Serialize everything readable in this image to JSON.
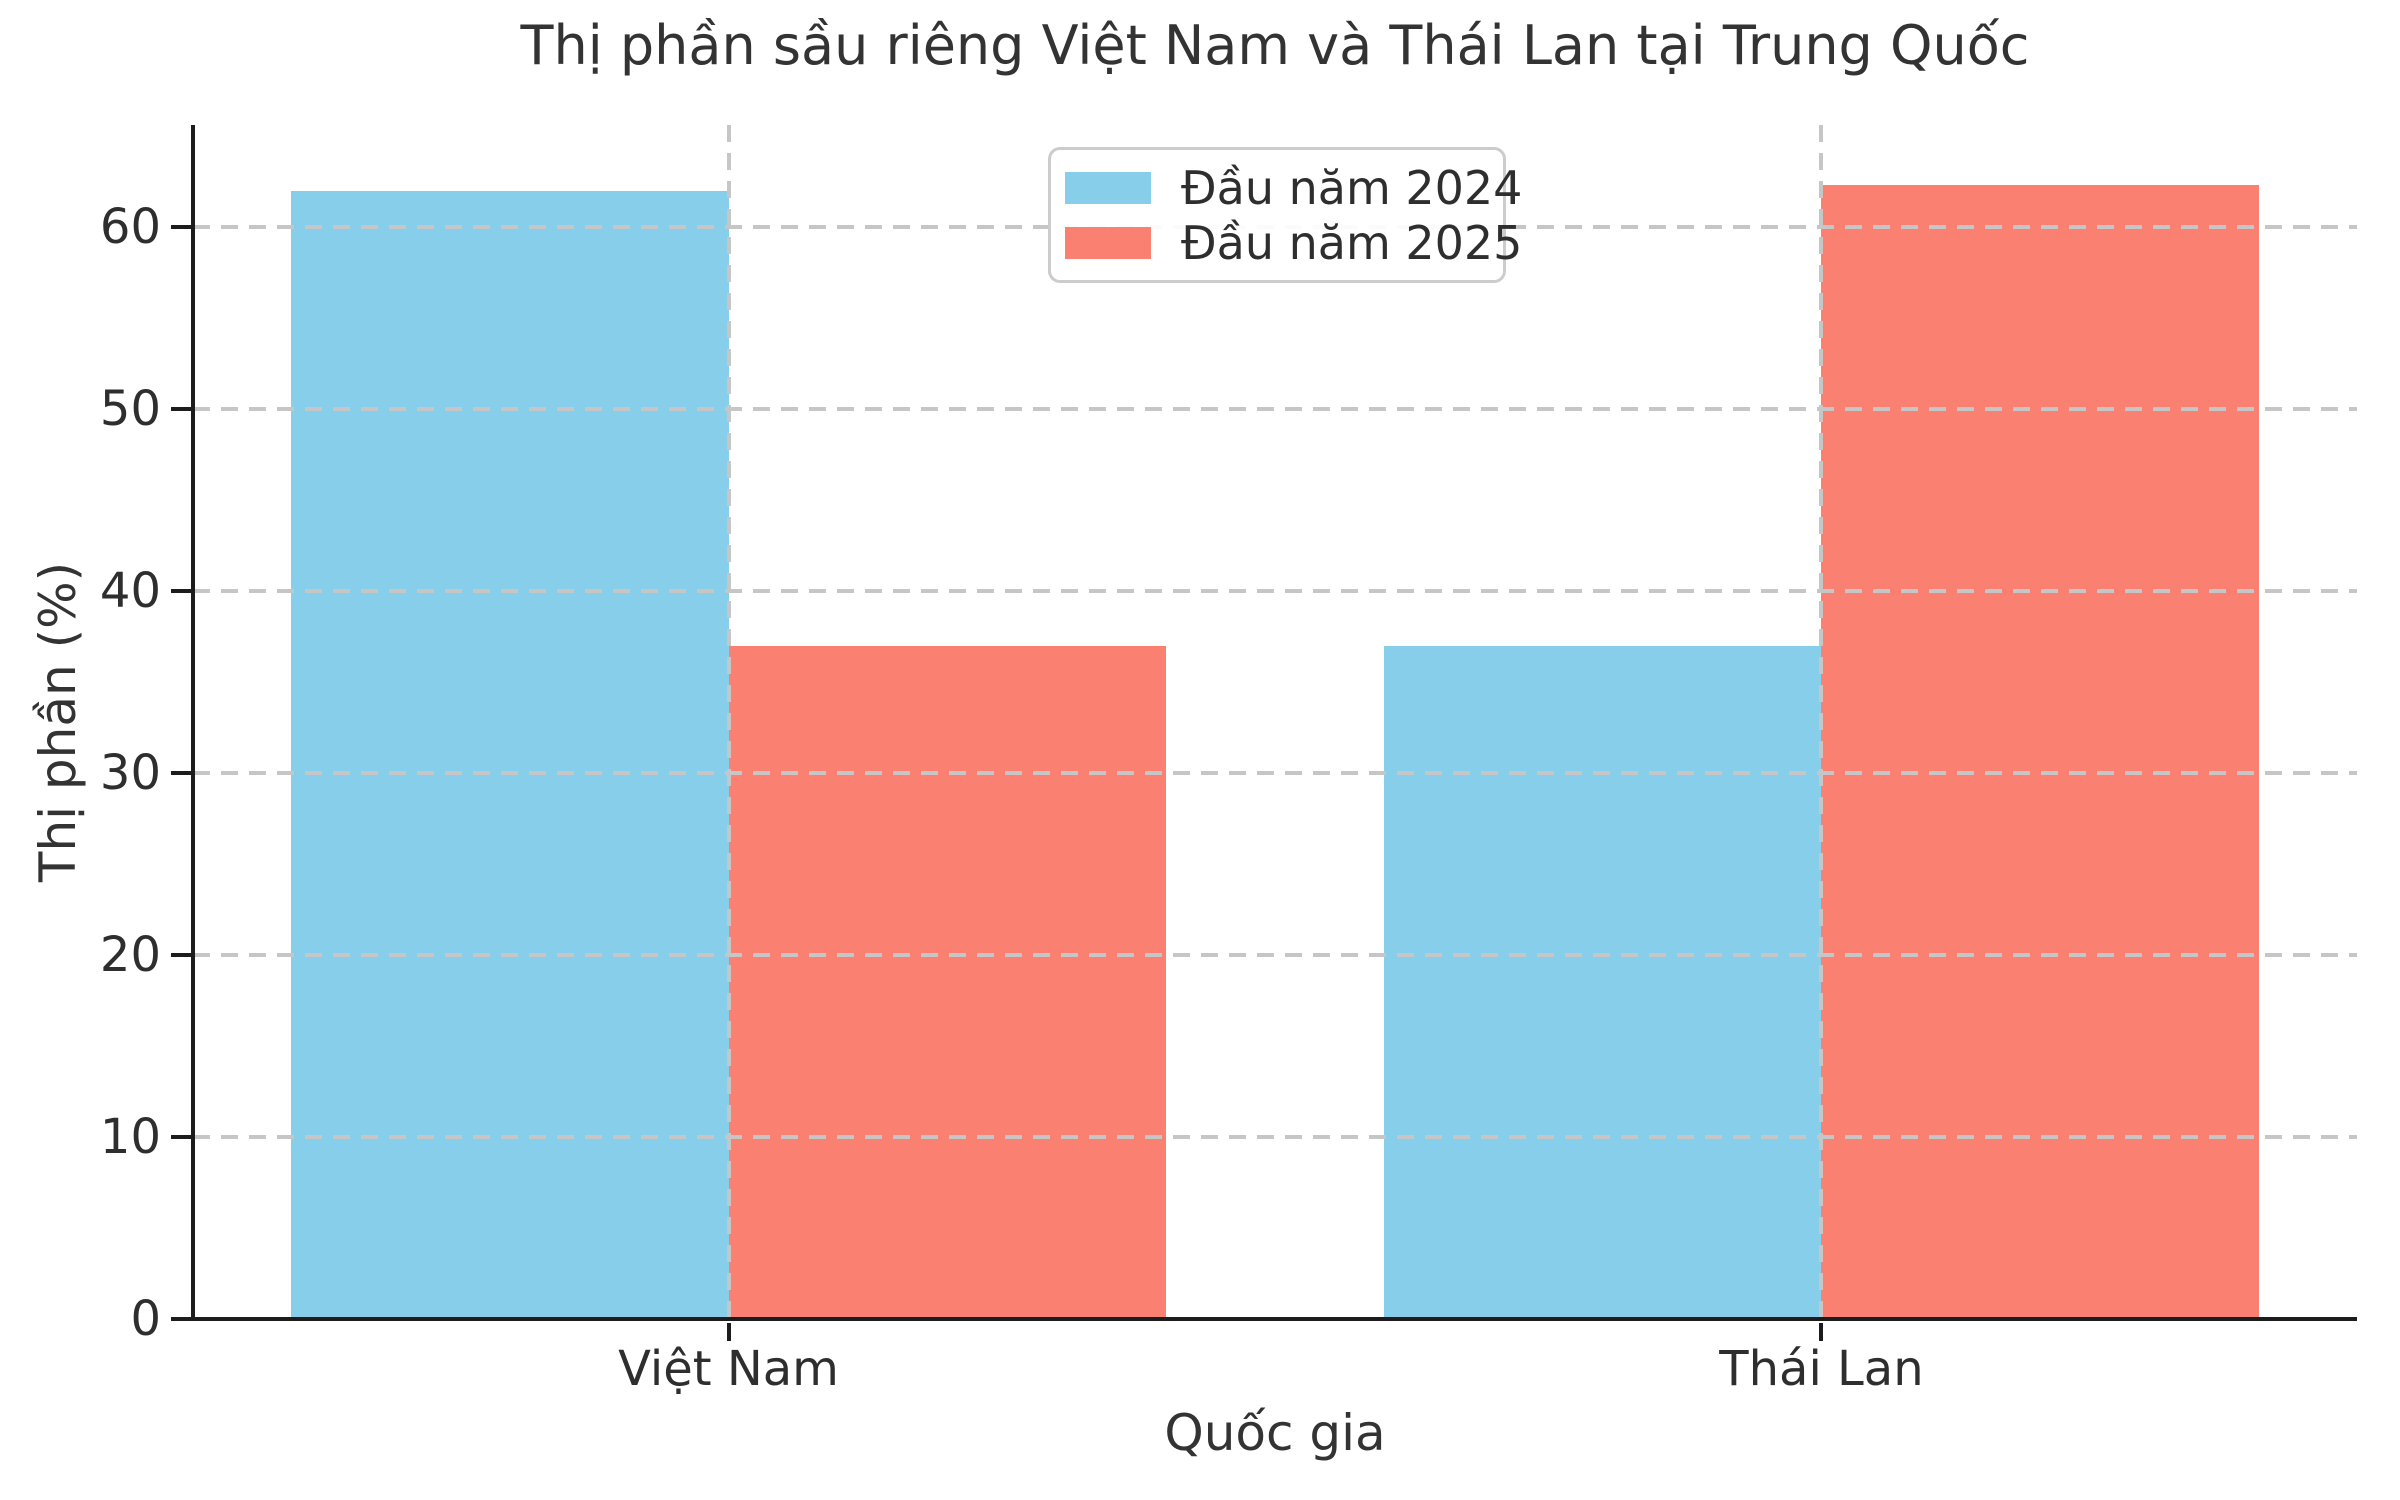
{
  "chart_data": {
    "type": "bar",
    "title": "Thị phần sầu riêng Việt Nam và Thái Lan tại Trung Quốc",
    "xlabel": "Quốc gia",
    "ylabel": "Thị phần (%)",
    "categories": [
      "Việt Nam",
      "Thái Lan"
    ],
    "series": [
      {
        "name": "Đầu năm 2024",
        "color": "#87CEEB",
        "values": [
          62,
          37
        ]
      },
      {
        "name": "Đầu năm 2025",
        "color": "#FA8072",
        "values": [
          37,
          62.3
        ]
      }
    ],
    "yticks": [
      0,
      10,
      20,
      30,
      40,
      50,
      60
    ],
    "ylim": [
      0,
      65.6
    ],
    "xlim": [
      -0.49,
      1.49
    ],
    "bar_width": 0.4,
    "grid": "both, dashed, drawn above bars",
    "legend_position": "upper center-left inside plot"
  },
  "colors": {
    "bar_2024": "#87CEEB",
    "bar_2025": "#FA8072",
    "gridline": "#c6c6c6",
    "spine": "#1c1c1c",
    "text": "#333333"
  }
}
